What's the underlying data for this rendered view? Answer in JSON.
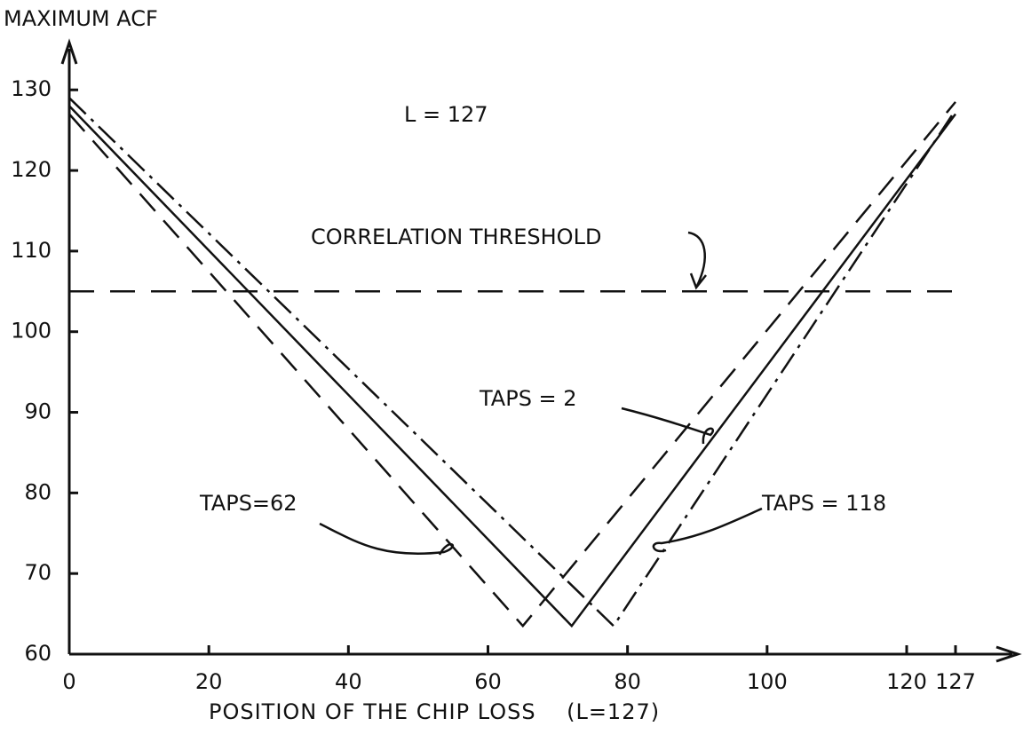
{
  "chart_data": {
    "type": "line",
    "ylabel": "MAXIMUM ACF",
    "xlabel": "POSITION OF THE CHIP LOSS    (L=127)",
    "annotation": "L = 127",
    "threshold": {
      "label": "CORRELATION THRESHOLD",
      "value": 105
    },
    "xlim": [
      0,
      127
    ],
    "ylim": [
      60,
      133
    ],
    "xticks": [
      0,
      20,
      40,
      60,
      80,
      100,
      120,
      127
    ],
    "yticks": [
      60,
      70,
      80,
      90,
      100,
      110,
      120,
      130
    ],
    "series": [
      {
        "name": "TAPS=62",
        "color": "#111111",
        "dash": "dashed",
        "x": [
          0,
          65,
          127
        ],
        "values": [
          127,
          63.5,
          128.5
        ]
      },
      {
        "name": "TAPS = 2",
        "color": "#111111",
        "dash": "solid",
        "x": [
          0,
          72,
          127
        ],
        "values": [
          128,
          63.5,
          127
        ]
      },
      {
        "name": "TAPS = 118",
        "color": "#111111",
        "dash": "dashdot",
        "x": [
          0,
          78,
          127
        ],
        "values": [
          129,
          63.5,
          127.5
        ]
      }
    ]
  }
}
